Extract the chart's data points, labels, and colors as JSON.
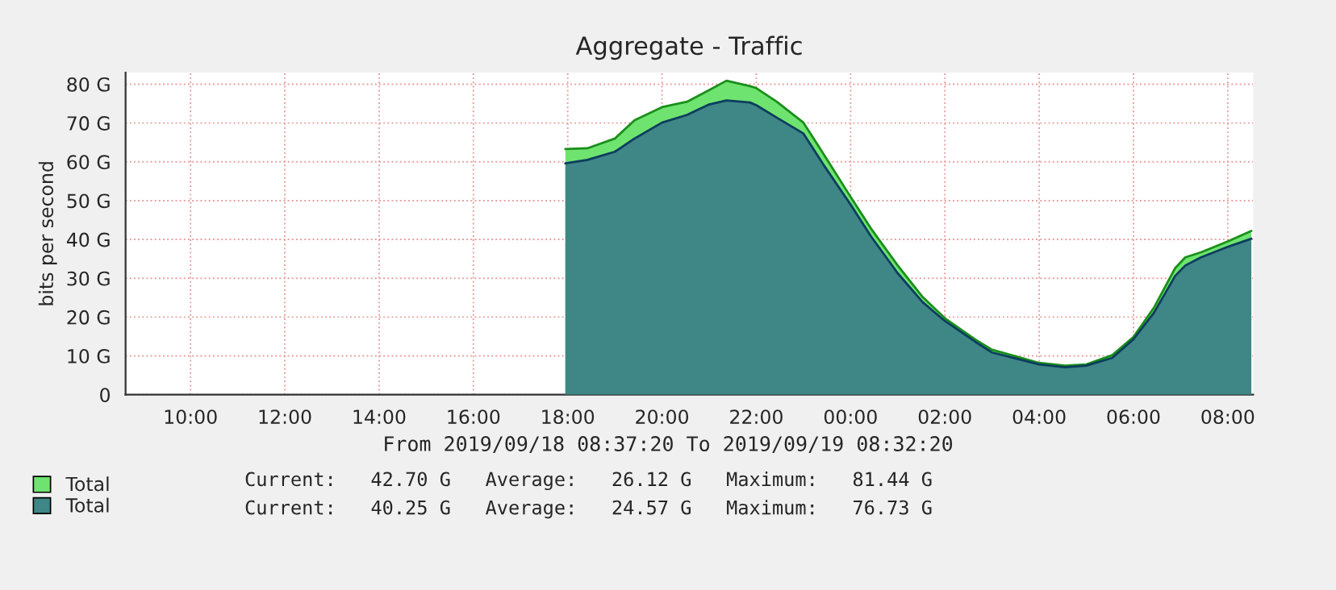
{
  "chart_data": {
    "type": "area",
    "title": "Aggregate - Traffic",
    "ylabel": "bits per second",
    "x": [
      "2019-09-18T17:57",
      "2019-09-18T18:25",
      "2019-09-18T19:00",
      "2019-09-18T19:25",
      "2019-09-18T20:00",
      "2019-09-18T20:32",
      "2019-09-18T21:00",
      "2019-09-18T21:22",
      "2019-09-18T21:52",
      "2019-09-18T22:00",
      "2019-09-18T22:26",
      "2019-09-18T23:00",
      "2019-09-18T23:26",
      "2019-09-19T00:00",
      "2019-09-19T00:26",
      "2019-09-19T01:00",
      "2019-09-19T01:32",
      "2019-09-19T02:00",
      "2019-09-19T02:39",
      "2019-09-19T03:00",
      "2019-09-19T04:00",
      "2019-09-19T04:33",
      "2019-09-19T05:00",
      "2019-09-19T05:33",
      "2019-09-19T06:00",
      "2019-09-19T06:26",
      "2019-09-19T06:53",
      "2019-09-19T07:06",
      "2019-09-19T07:26",
      "2019-09-19T08:00",
      "2019-09-19T08:30"
    ],
    "series": [
      {
        "name": "Total",
        "color": "#6fe36f",
        "values": [
          63.3,
          63.5,
          66.0,
          70.7,
          74.1,
          75.5,
          78.5,
          80.9,
          79.5,
          79.0,
          75.5,
          70.1,
          61.9,
          51.0,
          42.8,
          33.3,
          25.1,
          19.7,
          14.2,
          11.6,
          8.2,
          7.5,
          7.8,
          10.2,
          14.9,
          22.4,
          32.6,
          35.4,
          36.7,
          39.5,
          42.2
        ]
      },
      {
        "name": "Total",
        "color": "#3f8686",
        "values": [
          59.6,
          60.5,
          62.6,
          66.0,
          70.1,
          72.1,
          74.8,
          75.8,
          75.3,
          74.6,
          71.4,
          67.3,
          59.1,
          49.0,
          40.8,
          31.3,
          23.8,
          19.0,
          13.6,
          10.9,
          7.8,
          7.1,
          7.5,
          9.5,
          14.3,
          21.1,
          30.6,
          33.3,
          35.4,
          38.1,
          40.2
        ]
      }
    ],
    "xlim": [
      "2019-09-18T08:37:20",
      "2019-09-19T08:32:20"
    ],
    "xticks": [
      {
        "value": "2019-09-18T10:00",
        "label": "10:00"
      },
      {
        "value": "2019-09-18T12:00",
        "label": "12:00"
      },
      {
        "value": "2019-09-18T14:00",
        "label": "14:00"
      },
      {
        "value": "2019-09-18T16:00",
        "label": "16:00"
      },
      {
        "value": "2019-09-18T18:00",
        "label": "18:00"
      },
      {
        "value": "2019-09-18T20:00",
        "label": "20:00"
      },
      {
        "value": "2019-09-18T22:00",
        "label": "22:00"
      },
      {
        "value": "2019-09-19T00:00",
        "label": "00:00"
      },
      {
        "value": "2019-09-19T02:00",
        "label": "02:00"
      },
      {
        "value": "2019-09-19T04:00",
        "label": "04:00"
      },
      {
        "value": "2019-09-19T06:00",
        "label": "06:00"
      },
      {
        "value": "2019-09-19T08:00",
        "label": "08:00"
      }
    ],
    "ylim": [
      0,
      83
    ],
    "yticks": [
      0,
      {
        "value": 10,
        "label": "10 G"
      },
      {
        "value": 20,
        "label": "20 G"
      },
      {
        "value": 30,
        "label": "30 G"
      },
      {
        "value": 40,
        "label": "40 G"
      },
      {
        "value": 50,
        "label": "50 G"
      },
      {
        "value": 60,
        "label": "60 G"
      },
      {
        "value": 70,
        "label": "70 G"
      },
      {
        "value": 80,
        "label": "80 G"
      }
    ],
    "grid": true,
    "legend": "bottom left",
    "annotations": [
      "From 2019/09/18 08:37:20 To 2019/09/19 08:32:20",
      "Current:   42.70 G   Average:   26.12 G   Maximum:   81.44 G",
      "Current:   40.25 G   Average:   24.57 G   Maximum:   76.73 G"
    ]
  }
}
